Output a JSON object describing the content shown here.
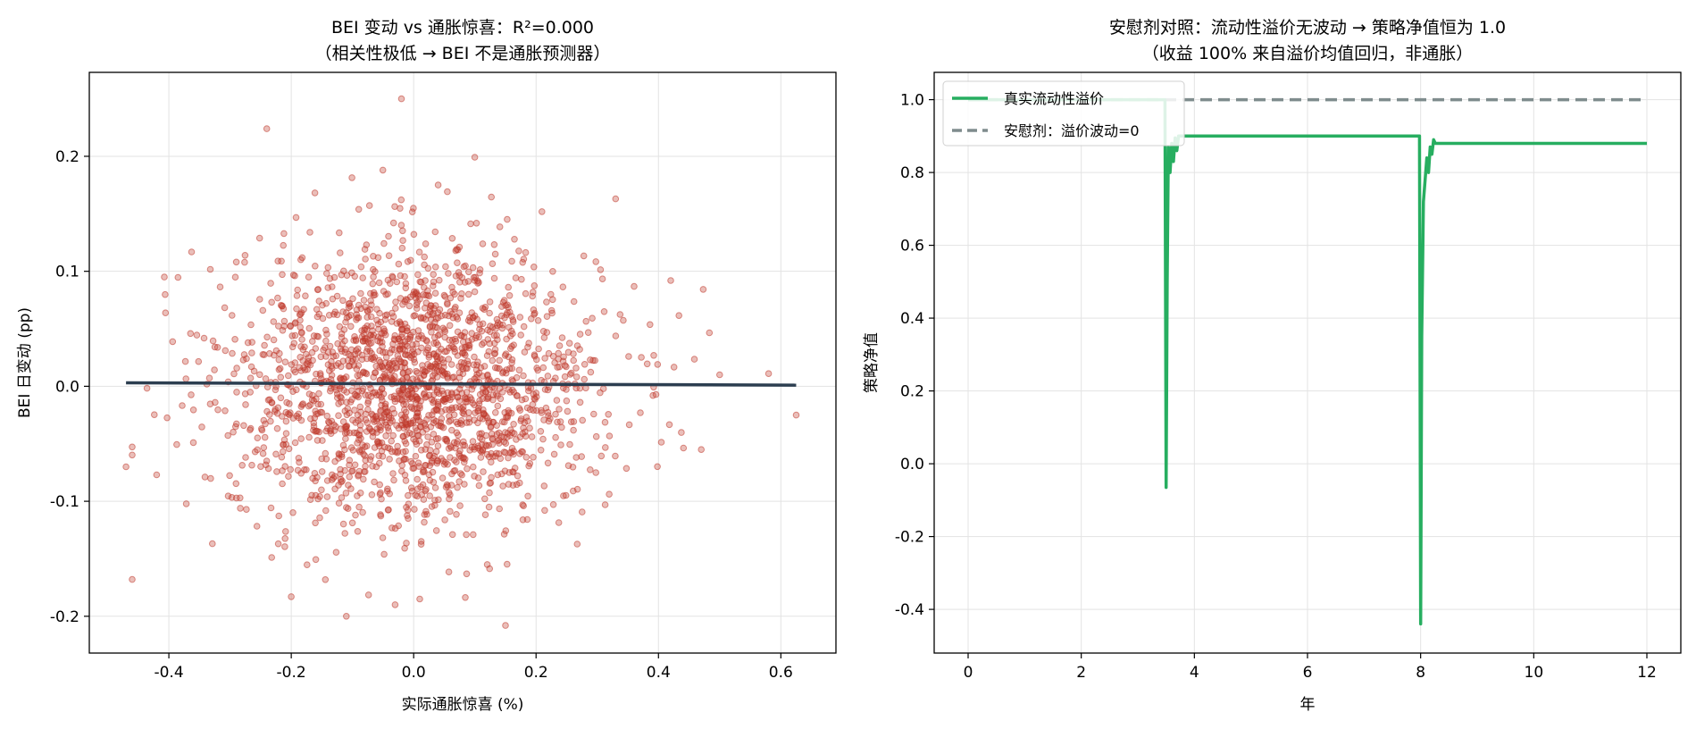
{
  "colors": {
    "scatter": "#c0392b",
    "fit": "#2c3e50",
    "real": "#27ae60",
    "placebo": "#7f8c8d"
  },
  "chart_data": [
    {
      "type": "scatter",
      "title_line1": "BEI 变动 vs 通胀惊喜：R²=0.000",
      "title_line2": "（相关性极低 → BEI 不是通胀预测器）",
      "xlabel": "实际通胀惊喜 (%)",
      "ylabel": "BEI 日变动 (pp)",
      "xlim": [
        -0.53,
        0.69
      ],
      "ylim": [
        -0.232,
        0.273
      ],
      "xticks": [
        -0.4,
        -0.2,
        0.0,
        0.2,
        0.4,
        0.6
      ],
      "xtick_labels": [
        "-0.4",
        "-0.2",
        "0.0",
        "0.2",
        "0.4",
        "0.6"
      ],
      "yticks": [
        -0.2,
        -0.1,
        0.0,
        0.1,
        0.2
      ],
      "ytick_labels": [
        "-0.2",
        "-0.1",
        "0.0",
        "0.1",
        "0.2"
      ],
      "grid": true,
      "n_points": 2000,
      "x_std": 0.15,
      "y_std": 0.06,
      "fit_line": {
        "x": [
          -0.47,
          0.625
        ],
        "y": [
          0.003,
          0.001
        ]
      },
      "outliers": [
        [
          -0.02,
          0.25
        ],
        [
          -0.24,
          0.224
        ],
        [
          0.33,
          0.163
        ],
        [
          0.04,
          0.175
        ],
        [
          0.625,
          -0.025
        ],
        [
          -0.11,
          -0.2
        ],
        [
          0.15,
          -0.208
        ],
        [
          -0.47,
          -0.07
        ],
        [
          0.58,
          0.011
        ],
        [
          0.5,
          0.01
        ],
        [
          0.47,
          -0.055
        ],
        [
          0.42,
          0.092
        ],
        [
          -0.42,
          -0.077
        ],
        [
          0.01,
          -0.185
        ],
        [
          -0.2,
          -0.183
        ]
      ]
    },
    {
      "type": "line",
      "title_line1": "安慰剂对照：流动性溢价无波动 → 策略净值恒为 1.0",
      "title_line2": "（收益 100% 来自溢价均值回归，非通胀）",
      "xlabel": "年",
      "ylabel": "策略净值",
      "xlim": [
        -0.6,
        12.6
      ],
      "ylim": [
        -0.52,
        1.075
      ],
      "xticks": [
        0,
        2,
        4,
        6,
        8,
        10,
        12
      ],
      "xtick_labels": [
        "0",
        "2",
        "4",
        "6",
        "8",
        "10",
        "12"
      ],
      "yticks": [
        -0.4,
        -0.2,
        0.0,
        0.2,
        0.4,
        0.6,
        0.8,
        1.0
      ],
      "ytick_labels": [
        "-0.4",
        "-0.2",
        "0.0",
        "0.2",
        "0.4",
        "0.6",
        "0.8",
        "1.0"
      ],
      "grid": true,
      "legend_position": "top-left",
      "series": [
        {
          "name": "真实流动性溢价",
          "style": "solid",
          "points": [
            [
              0,
              1.0
            ],
            [
              3.48,
              1.0
            ],
            [
              3.5,
              -0.065
            ],
            [
              3.52,
              0.5
            ],
            [
              3.54,
              0.87
            ],
            [
              3.57,
              0.8
            ],
            [
              3.6,
              0.88
            ],
            [
              3.63,
              0.83
            ],
            [
              3.66,
              0.895
            ],
            [
              3.69,
              0.86
            ],
            [
              3.72,
              0.9
            ],
            [
              7.98,
              0.9
            ],
            [
              8.0,
              -0.44
            ],
            [
              8.02,
              0.35
            ],
            [
              8.05,
              0.72
            ],
            [
              8.08,
              0.78
            ],
            [
              8.11,
              0.84
            ],
            [
              8.14,
              0.8
            ],
            [
              8.17,
              0.87
            ],
            [
              8.2,
              0.85
            ],
            [
              8.23,
              0.89
            ],
            [
              8.26,
              0.88
            ],
            [
              12.0,
              0.88
            ]
          ]
        },
        {
          "name": "安慰剂：溢价波动=0",
          "style": "dashed",
          "points": [
            [
              0,
              1.0
            ],
            [
              12.0,
              1.0
            ]
          ]
        }
      ]
    }
  ]
}
